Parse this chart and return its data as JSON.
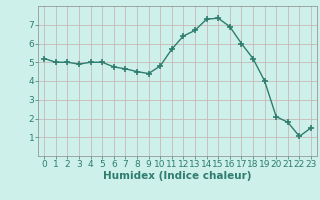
{
  "x": [
    0,
    1,
    2,
    3,
    4,
    5,
    6,
    7,
    8,
    9,
    10,
    11,
    12,
    13,
    14,
    15,
    16,
    17,
    18,
    19,
    20,
    21,
    22,
    23
  ],
  "y": [
    5.2,
    5.0,
    5.0,
    4.9,
    5.0,
    5.0,
    4.75,
    4.65,
    4.5,
    4.4,
    4.8,
    5.7,
    6.4,
    6.7,
    7.3,
    7.35,
    6.9,
    6.0,
    5.2,
    4.0,
    2.1,
    1.8,
    1.05,
    1.5
  ],
  "xlabel": "Humidex (Indice chaleur)",
  "xlim": [
    -0.5,
    23.5
  ],
  "ylim": [
    0,
    8
  ],
  "yticks": [
    1,
    2,
    3,
    4,
    5,
    6,
    7
  ],
  "xticks": [
    0,
    1,
    2,
    3,
    4,
    5,
    6,
    7,
    8,
    9,
    10,
    11,
    12,
    13,
    14,
    15,
    16,
    17,
    18,
    19,
    20,
    21,
    22,
    23
  ],
  "line_color": "#2e7d6e",
  "bg_color": "#cef0ea",
  "grid_color": "#c8b8b8",
  "tick_color": "#2e7d6e",
  "label_color": "#2e7d6e",
  "tick_fontsize": 6.5,
  "xlabel_fontsize": 7.5
}
